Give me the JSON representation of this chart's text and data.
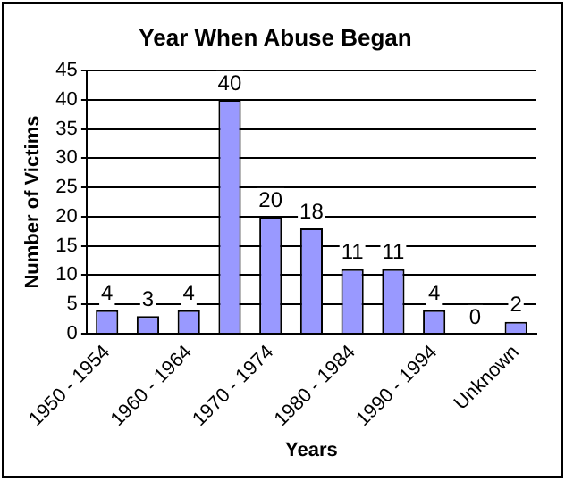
{
  "chart_data": {
    "type": "bar",
    "title": "Year When Abuse Began",
    "xlabel": "Years",
    "ylabel": "Number of Victims",
    "categories": [
      "1950 - 1954",
      null,
      "1960 - 1964",
      null,
      "1970 - 1974",
      null,
      "1980 - 1984",
      null,
      "1990 - 1994",
      null,
      "Unknown"
    ],
    "values": [
      4,
      3,
      4,
      40,
      20,
      18,
      11,
      11,
      4,
      0,
      2
    ],
    "color": "#9999ff",
    "ylim": [
      0,
      45
    ],
    "yticks": [
      0,
      5,
      10,
      15,
      20,
      25,
      30,
      35,
      40,
      45
    ],
    "grid": "y",
    "data_labels": true,
    "legend": false
  }
}
